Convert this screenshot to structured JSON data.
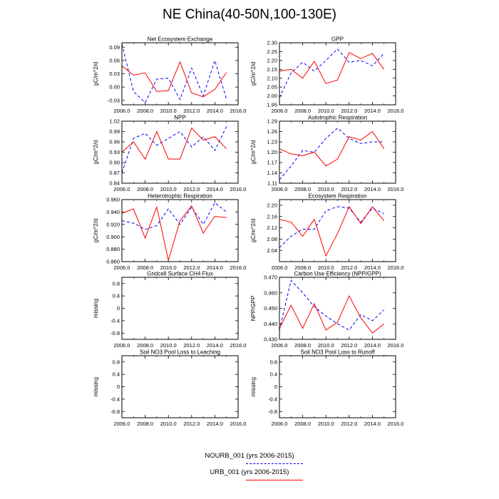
{
  "figure": {
    "title": "NE China(40-50N,100-130E)",
    "x_ticks": [
      "2006.0",
      "2008.0",
      "2010.0",
      "2012.0",
      "2014.0",
      "2016.0"
    ],
    "xlim": [
      2006,
      2016
    ]
  },
  "legend": {
    "series_a": "NOURB_001 (yrs 2006-2015)",
    "series_b": "URB_001 (yrs 2006-2015)"
  },
  "colors": {
    "series_a": "#0000ff",
    "series_b": "#ff0000"
  },
  "chart_data": [
    {
      "type": "line",
      "title": "Net Ecosystem Exchange",
      "ylabel": "gC/m^2/d",
      "ylim": [
        -0.04,
        0.1
      ],
      "y_ticks": [
        -0.03,
        0.0,
        0.03,
        0.06,
        0.09
      ],
      "y_tick_labels": [
        "-0.03",
        "0.00",
        "0.03",
        "0.06",
        "0.09"
      ],
      "x": [
        2006,
        2007,
        2008,
        2009,
        2010,
        2011,
        2012,
        2013,
        2014,
        2015
      ],
      "series": [
        {
          "name": "NOURB_001 (yrs 2006-2015)",
          "style": "dashed",
          "color": "#0000ff",
          "values": [
            0.097,
            -0.01,
            -0.035,
            0.018,
            0.02,
            -0.028,
            0.043,
            -0.02,
            0.06,
            -0.027
          ]
        },
        {
          "name": "URB_001 (yrs 2006-2015)",
          "style": "solid",
          "color": "#ff0000",
          "values": [
            0.048,
            0.027,
            0.032,
            -0.01,
            -0.008,
            0.057,
            -0.013,
            -0.022,
            -0.005,
            0.033
          ]
        }
      ]
    },
    {
      "type": "line",
      "title": "GPP",
      "ylabel": "gC/m^2/d",
      "ylim": [
        1.95,
        2.3
      ],
      "y_ticks": [
        1.95,
        2.0,
        2.05,
        2.1,
        2.15,
        2.2,
        2.25,
        2.3
      ],
      "y_tick_labels": [
        "1.95",
        "2.00",
        "2.05",
        "2.10",
        "2.15",
        "2.20",
        "2.25",
        "2.30"
      ],
      "x": [
        2006,
        2007,
        2008,
        2009,
        2010,
        2011,
        2012,
        2013,
        2014,
        2015
      ],
      "series": [
        {
          "name": "NOURB_001 (yrs 2006-2015)",
          "style": "dashed",
          "color": "#0000ff",
          "values": [
            1.99,
            2.13,
            2.19,
            2.14,
            2.2,
            2.265,
            2.19,
            2.2,
            2.17,
            2.24
          ]
        },
        {
          "name": "URB_001 (yrs 2006-2015)",
          "style": "solid",
          "color": "#ff0000",
          "values": [
            2.14,
            2.15,
            2.1,
            2.195,
            2.07,
            2.09,
            2.245,
            2.21,
            2.24,
            2.15
          ]
        }
      ]
    },
    {
      "type": "line",
      "title": "NPP",
      "ylabel": "gC/m^2/d",
      "ylim": [
        0.84,
        1.02
      ],
      "y_ticks": [
        0.84,
        0.87,
        0.9,
        0.93,
        0.96,
        0.99,
        1.02
      ],
      "y_tick_labels": [
        "0.84",
        "0.87",
        "0.90",
        "0.93",
        "0.96",
        "0.99",
        "1.02"
      ],
      "x": [
        2006,
        2007,
        2008,
        2009,
        2010,
        2011,
        2012,
        2013,
        2014,
        2015
      ],
      "series": [
        {
          "name": "NOURB_001 (yrs 2006-2015)",
          "style": "dashed",
          "color": "#0000ff",
          "values": [
            0.87,
            0.97,
            0.985,
            0.95,
            0.97,
            0.99,
            0.945,
            0.975,
            0.935,
            1.005
          ]
        },
        {
          "name": "URB_001 (yrs 2006-2015)",
          "style": "solid",
          "color": "#ff0000",
          "values": [
            0.93,
            0.96,
            0.91,
            0.99,
            0.91,
            0.91,
            1.0,
            0.965,
            0.975,
            0.94
          ]
        }
      ]
    },
    {
      "type": "line",
      "title": "Autotrophic Respiration",
      "ylabel": "gC/m^2/d",
      "ylim": [
        1.11,
        1.29
      ],
      "y_ticks": [
        1.11,
        1.14,
        1.17,
        1.2,
        1.23,
        1.26,
        1.29
      ],
      "y_tick_labels": [
        "1.11",
        "1.14",
        "1.17",
        "1.20",
        "1.23",
        "1.26",
        "1.29"
      ],
      "x": [
        2006,
        2007,
        2008,
        2009,
        2010,
        2011,
        2012,
        2013,
        2014,
        2015
      ],
      "series": [
        {
          "name": "NOURB_001 (yrs 2006-2015)",
          "style": "dashed",
          "color": "#0000ff",
          "values": [
            1.12,
            1.16,
            1.205,
            1.2,
            1.24,
            1.27,
            1.24,
            1.225,
            1.23,
            1.23
          ]
        },
        {
          "name": "URB_001 (yrs 2006-2015)",
          "style": "solid",
          "color": "#ff0000",
          "values": [
            1.21,
            1.195,
            1.19,
            1.2,
            1.16,
            1.18,
            1.245,
            1.235,
            1.26,
            1.21
          ]
        }
      ]
    },
    {
      "type": "line",
      "title": "Heterotrophic Respiration",
      "ylabel": "gC/m^2/d",
      "ylim": [
        0.86,
        0.96
      ],
      "y_ticks": [
        0.86,
        0.88,
        0.9,
        0.92,
        0.94,
        0.96
      ],
      "y_tick_labels": [
        "0.860",
        "0.880",
        "0.900",
        "0.920",
        "0.940",
        "0.960"
      ],
      "x": [
        2006,
        2007,
        2008,
        2009,
        2010,
        2011,
        2012,
        2013,
        2014,
        2015
      ],
      "series": [
        {
          "name": "NOURB_001 (yrs 2006-2015)",
          "style": "dashed",
          "color": "#0000ff",
          "values": [
            0.926,
            0.922,
            0.912,
            0.918,
            0.945,
            0.92,
            0.948,
            0.92,
            0.955,
            0.94
          ]
        },
        {
          "name": "URB_001 (yrs 2006-2015)",
          "style": "solid",
          "color": "#ff0000",
          "values": [
            0.938,
            0.945,
            0.898,
            0.948,
            0.862,
            0.926,
            0.95,
            0.906,
            0.933,
            0.931
          ]
        }
      ]
    },
    {
      "type": "line",
      "title": "Ecosystem Respiration",
      "ylabel": "gC/m^2/d",
      "ylim": [
        2.0,
        2.22
      ],
      "y_ticks": [
        2.04,
        2.08,
        2.12,
        2.16,
        2.2
      ],
      "y_tick_labels": [
        "2.04",
        "2.08",
        "2.12",
        "2.16",
        "2.20"
      ],
      "x": [
        2006,
        2007,
        2008,
        2009,
        2010,
        2011,
        2012,
        2013,
        2014,
        2015
      ],
      "series": [
        {
          "name": "NOURB_001 (yrs 2006-2015)",
          "style": "dashed",
          "color": "#0000ff",
          "values": [
            2.05,
            2.09,
            2.115,
            2.115,
            2.18,
            2.195,
            2.19,
            2.14,
            2.19,
            2.17
          ]
        },
        {
          "name": "URB_001 (yrs 2006-2015)",
          "style": "solid",
          "color": "#ff0000",
          "values": [
            2.15,
            2.14,
            2.09,
            2.15,
            2.02,
            2.1,
            2.195,
            2.135,
            2.195,
            2.145
          ]
        }
      ]
    },
    {
      "type": "line",
      "title": "Gridcell Surface CH4 Flux",
      "ylabel": "missing",
      "ylim": [
        -1.0,
        1.0
      ],
      "y_ticks": [
        -0.8,
        -0.4,
        0.0,
        0.4,
        0.8
      ],
      "y_tick_labels": [
        "-0.8",
        "-0.4",
        "0",
        "0.4",
        "0.8"
      ],
      "x": [],
      "series": []
    },
    {
      "type": "line",
      "title": "Carbon Use Efficiency (NPP/GPP)",
      "ylabel": "NPP/GPP",
      "ylim": [
        0.43,
        0.47
      ],
      "y_ticks": [
        0.43,
        0.44,
        0.45,
        0.46,
        0.47
      ],
      "y_tick_labels": [
        "0.430",
        "0.440",
        "0.450",
        "0.460",
        "0.470"
      ],
      "x": [
        2006,
        2007,
        2008,
        2009,
        2010,
        2011,
        2012,
        2013,
        2014,
        2015
      ],
      "series": [
        {
          "name": "NOURB_001 (yrs 2006-2015)",
          "style": "dashed",
          "color": "#0000ff",
          "values": [
            0.436,
            0.468,
            0.46,
            0.451,
            0.445,
            0.44,
            0.436,
            0.446,
            0.442,
            0.449
          ]
        },
        {
          "name": "URB_001 (yrs 2006-2015)",
          "style": "solid",
          "color": "#ff0000",
          "values": [
            0.437,
            0.452,
            0.437,
            0.453,
            0.436,
            0.441,
            0.458,
            0.444,
            0.434,
            0.44
          ]
        }
      ]
    },
    {
      "type": "line",
      "title": "Soil NO3 Pool Loss to Leaching",
      "ylabel": "missing",
      "ylim": [
        -1.0,
        1.0
      ],
      "y_ticks": [
        -0.8,
        -0.4,
        0.0,
        0.4,
        0.8
      ],
      "y_tick_labels": [
        "-0.8",
        "-0.4",
        "0",
        "0.4",
        "0.8"
      ],
      "x": [],
      "series": []
    },
    {
      "type": "line",
      "title": "Soil NO3 Pool Loss to Runoff",
      "ylabel": "missing",
      "ylim": [
        -1.0,
        1.0
      ],
      "y_ticks": [
        -0.8,
        -0.4,
        0.0,
        0.4,
        0.8
      ],
      "y_tick_labels": [
        "-0.8",
        "-0.4",
        "0",
        "0.4",
        "0.8"
      ],
      "x": [],
      "series": []
    }
  ]
}
